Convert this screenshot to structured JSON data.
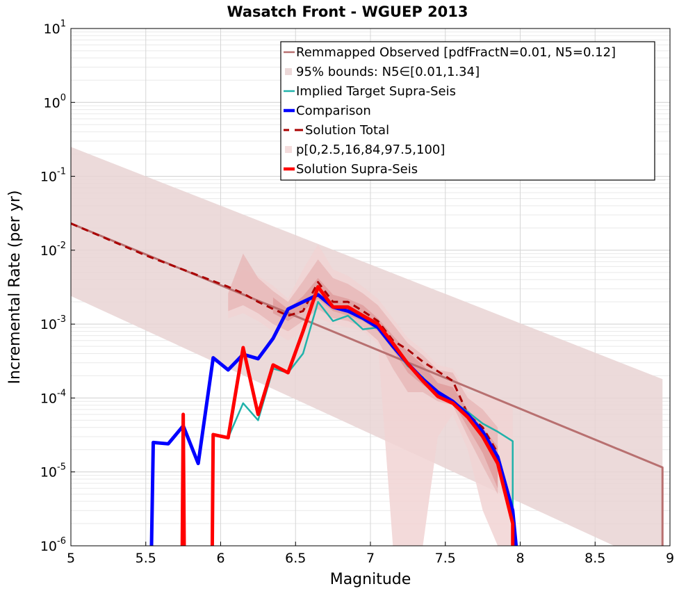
{
  "chart_data": {
    "type": "line",
    "title": "Wasatch Front - WGUEP 2013",
    "xlabel": "Magnitude",
    "ylabel": "Incremental Rate (per yr)",
    "xlim": [
      5,
      9
    ],
    "ylim": [
      1e-06,
      10
    ],
    "yscale": "log",
    "grid": true,
    "legend_placement": "top-right",
    "x_ticks": [
      "5",
      "5.5",
      "6",
      "6.5",
      "7",
      "7.5",
      "8",
      "8.5",
      "9"
    ],
    "y_ticks": [
      {
        "base": "10",
        "exp": "-6",
        "value": 1e-06
      },
      {
        "base": "10",
        "exp": "-5",
        "value": 1e-05
      },
      {
        "base": "10",
        "exp": "-4",
        "value": 0.0001
      },
      {
        "base": "10",
        "exp": "-3",
        "value": 0.001
      },
      {
        "base": "10",
        "exp": "-2",
        "value": 0.01
      },
      {
        "base": "10",
        "exp": "-1",
        "value": 0.1
      },
      {
        "base": "10",
        "exp": "0",
        "value": 1
      },
      {
        "base": "10",
        "exp": "1",
        "value": 10
      }
    ],
    "legend": [
      {
        "label": "Remmapped Observed [pdfFractN=0.01, N5=0.12]",
        "style": "line",
        "color": "#b87070"
      },
      {
        "label": "95% bounds: N5∈[0.01,1.34]",
        "style": "patch",
        "color": "#ecd8d8"
      },
      {
        "label": "Implied Target Supra-Seis",
        "style": "line",
        "color": "#20b2aa"
      },
      {
        "label": "Comparison",
        "style": "thick",
        "color": "#0000ff"
      },
      {
        "label": "Solution Total",
        "style": "dash",
        "color": "#aa0000"
      },
      {
        "label": "p[0,2.5,16,84,97.5,100]",
        "style": "patch",
        "color": "#f4dcdc"
      },
      {
        "label": "Solution Supra-Seis",
        "style": "thick",
        "color": "#ff0000"
      }
    ],
    "bands": [
      {
        "name": "95% bounds",
        "color": "#e9d4d4",
        "x": [
          5.0,
          8.95
        ],
        "upper": [
          0.25,
          0.00018
        ],
        "lower": [
          0.0024,
          5e-07
        ]
      },
      {
        "name": "p 0-100",
        "color": "#f1d4d4",
        "x": [
          6.05,
          6.15,
          6.25,
          6.35,
          6.45,
          6.55,
          6.65,
          6.75,
          6.85,
          6.95,
          7.05,
          7.15,
          7.25,
          7.35,
          7.45,
          7.55,
          7.65,
          7.75,
          7.85,
          7.95
        ],
        "upper": [
          0.0032,
          0.0055,
          0.0045,
          0.0033,
          0.0022,
          0.0055,
          0.012,
          0.0055,
          0.0045,
          0.0032,
          0.0022,
          0.0012,
          0.00065,
          0.00045,
          0.00028,
          0.00025,
          0.00012,
          0.00011,
          0.0001,
          8e-05
        ],
        "lower": [
          0.0012,
          0.0014,
          0.0011,
          0.0008,
          0.0006,
          0.0008,
          0.0012,
          0.001,
          0.0009,
          0.0008,
          0.00055,
          1e-06,
          1e-06,
          1e-06,
          3e-05,
          6e-05,
          2e-05,
          3e-06,
          1e-06,
          1e-06
        ]
      },
      {
        "name": "p 2.5-97.5",
        "color": "#e8b8b8",
        "x": [
          6.05,
          6.15,
          6.25,
          6.35,
          6.45,
          6.55,
          6.65,
          6.75,
          6.85,
          6.95,
          7.05,
          7.15,
          7.25,
          7.35,
          7.45,
          7.55,
          7.65,
          7.75,
          7.85
        ],
        "upper": [
          0.0026,
          0.009,
          0.0042,
          0.0028,
          0.002,
          0.0038,
          0.0075,
          0.0042,
          0.0035,
          0.0026,
          0.0018,
          0.001,
          0.00055,
          0.00038,
          0.00024,
          0.00022,
          0.0001,
          7e-05,
          4e-05
        ],
        "lower": [
          0.0015,
          0.0018,
          0.0014,
          0.001,
          0.0008,
          0.0011,
          0.0016,
          0.0012,
          0.0011,
          0.0009,
          0.0006,
          0.00025,
          0.00012,
          0.00012,
          9e-05,
          8e-05,
          3e-05,
          1.2e-05,
          5e-06
        ]
      },
      {
        "name": "p 16-84",
        "color": "#df9e9e",
        "x": [
          6.35,
          6.45,
          6.55,
          6.65,
          6.75,
          6.85,
          6.95,
          7.05,
          7.15,
          7.25,
          7.35,
          7.45,
          7.55,
          7.65,
          7.75,
          7.85
        ],
        "upper": [
          0.0023,
          0.0016,
          0.0024,
          0.0042,
          0.0025,
          0.0022,
          0.0018,
          0.0012,
          0.0007,
          0.00042,
          0.00028,
          0.00016,
          0.00014,
          7e-05,
          4e-05,
          2.2e-05
        ],
        "lower": [
          0.0014,
          0.0011,
          0.0015,
          0.0022,
          0.0015,
          0.0013,
          0.0011,
          0.0008,
          0.00045,
          0.00022,
          0.00015,
          0.00011,
          9e-05,
          4e-05,
          1.8e-05,
          6e-06
        ]
      }
    ],
    "series": [
      {
        "name": "Remmapped Observed [pdfFractN=0.01, N5=0.12]",
        "color": "#b87070",
        "width": 3,
        "dash": "",
        "x": [
          5.0,
          8.95,
          8.95
        ],
        "y": [
          0.023,
          1.15e-05,
          1e-07
        ]
      },
      {
        "name": "Solution Total",
        "color": "#aa0000",
        "width": 3,
        "dash": "10,7",
        "x": [
          5.0,
          5.5,
          6.05,
          6.15,
          6.25,
          6.35,
          6.45,
          6.55,
          6.65,
          6.75,
          6.85,
          6.95,
          7.05,
          7.15,
          7.25,
          7.35,
          7.45,
          7.55,
          7.65,
          7.75,
          7.85
        ],
        "y": [
          0.023,
          0.0085,
          0.0032,
          0.0026,
          0.002,
          0.0016,
          0.0013,
          0.0015,
          0.0037,
          0.002,
          0.002,
          0.0015,
          0.0011,
          0.0006,
          0.00045,
          0.00031,
          0.00023,
          0.00017,
          6e-05,
          4e-05,
          1.8e-05
        ]
      },
      {
        "name": "Implied Target Supra-Seis",
        "color": "#20b2aa",
        "width": 2.5,
        "dash": "",
        "x": [
          6.05,
          6.15,
          6.25,
          6.35,
          6.45,
          6.55,
          6.65,
          6.75,
          6.85,
          6.95,
          7.05,
          7.15,
          7.25,
          7.35,
          7.45,
          7.55,
          7.65,
          7.75,
          7.85,
          7.95,
          7.95
        ],
        "y": [
          2.9e-05,
          8.5e-05,
          5e-05,
          0.00025,
          0.00022,
          0.0004,
          0.002,
          0.0011,
          0.0013,
          0.00085,
          0.0009,
          0.0005,
          0.00027,
          0.00019,
          0.00011,
          9e-05,
          6.5e-05,
          4.5e-05,
          3.5e-05,
          2.6e-05,
          1e-07
        ]
      },
      {
        "name": "Comparison",
        "color": "#0000ff",
        "width": 5,
        "dash": "",
        "x": [
          5.53,
          5.55,
          5.65,
          5.75,
          5.85,
          5.95,
          6.05,
          6.15,
          6.25,
          6.35,
          6.45,
          6.55,
          6.65,
          6.75,
          6.85,
          6.95,
          7.05,
          7.15,
          7.25,
          7.35,
          7.45,
          7.55,
          7.65,
          7.75,
          7.85,
          7.95,
          8.02
        ],
        "y": [
          1e-07,
          2.5e-05,
          2.4e-05,
          4.2e-05,
          1.3e-05,
          0.00035,
          0.00024,
          0.00039,
          0.00034,
          0.00064,
          0.0016,
          0.002,
          0.0025,
          0.0017,
          0.0015,
          0.0012,
          0.0009,
          0.0005,
          0.00029,
          0.00018,
          0.00012,
          9e-05,
          6e-05,
          3.5e-05,
          1.6e-05,
          3e-06,
          1e-07
        ]
      },
      {
        "name": "Solution Supra-Seis",
        "color": "#ff0000",
        "width": 5,
        "dash": "",
        "x": [
          5.74,
          5.75,
          5.76,
          5.94,
          5.95,
          6.05,
          6.15,
          6.25,
          6.35,
          6.45,
          6.55,
          6.65,
          6.75,
          6.85,
          6.95,
          7.05,
          7.15,
          7.25,
          7.35,
          7.45,
          7.55,
          7.65,
          7.75,
          7.85,
          7.95,
          7.95
        ],
        "y": [
          1e-07,
          6e-05,
          1e-07,
          1e-07,
          3.2e-05,
          2.9e-05,
          0.00048,
          6e-05,
          0.00028,
          0.00022,
          0.0008,
          0.0032,
          0.0017,
          0.0017,
          0.0013,
          0.001,
          0.00055,
          0.00029,
          0.00017,
          0.000105,
          8.5e-05,
          5.5e-05,
          3e-05,
          1.3e-05,
          2e-06,
          1e-07
        ]
      }
    ]
  }
}
